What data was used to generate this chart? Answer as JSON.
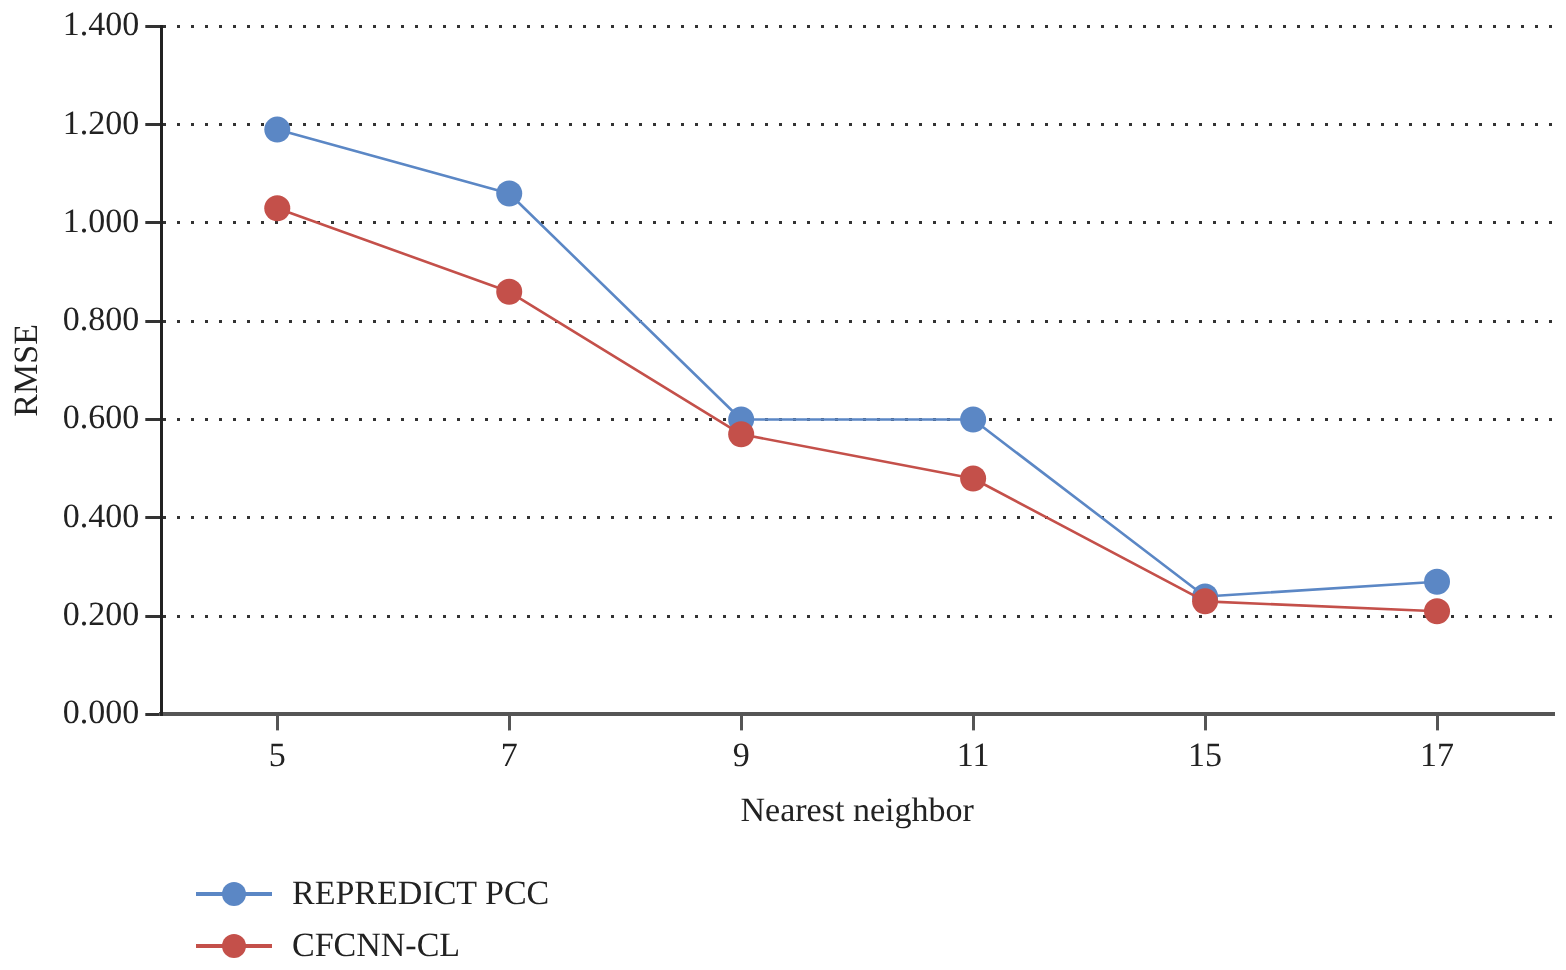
{
  "chart_data": {
    "type": "line",
    "xlabel": "Nearest neighbor",
    "ylabel": "RMSE",
    "categories": [
      "5",
      "7",
      "9",
      "11",
      "15",
      "17"
    ],
    "series": [
      {
        "name": "REPREDICT PCC",
        "color": "#5b87c5",
        "values": [
          1.19,
          1.06,
          0.6,
          0.6,
          0.24,
          0.27
        ]
      },
      {
        "name": "CFCNN-CL",
        "color": "#c4504a",
        "values": [
          1.03,
          0.86,
          0.57,
          0.48,
          0.23,
          0.21
        ]
      }
    ],
    "ylim": [
      0,
      1.4
    ],
    "yticks": [
      {
        "value": 0,
        "label": "0.000"
      },
      {
        "value": 0.2,
        "label": "0.200"
      },
      {
        "value": 0.4,
        "label": "0.400"
      },
      {
        "value": 0.6,
        "label": "0.600"
      },
      {
        "value": 0.8,
        "label": "0.800"
      },
      {
        "value": 1,
        "label": "1.000"
      },
      {
        "value": 1.2,
        "label": "1.200"
      },
      {
        "value": 1.4,
        "label": "1.400"
      }
    ],
    "grid": "y",
    "legend": "bottom left",
    "marker": "circle",
    "line_style": "solid"
  }
}
